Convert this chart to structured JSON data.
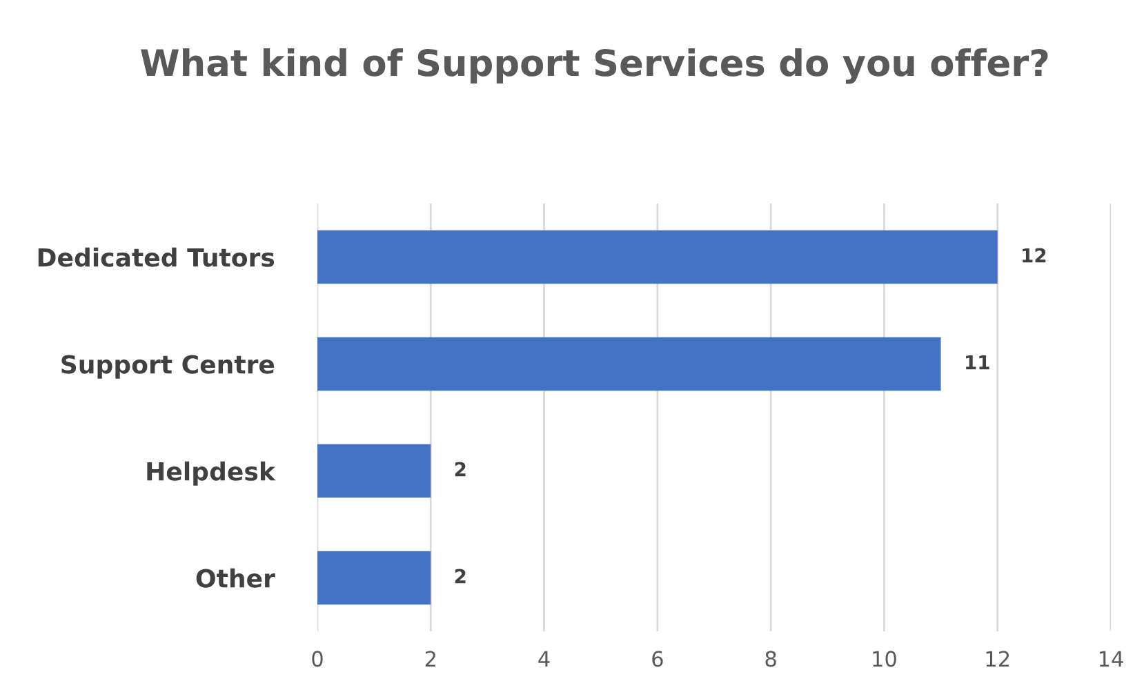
{
  "chart_data": {
    "type": "bar",
    "orientation": "horizontal",
    "title": "What kind of Support Services do you offer?",
    "categories": [
      "Dedicated Tutors",
      "Support Centre",
      "Helpdesk",
      "Other"
    ],
    "values": [
      12,
      11,
      2,
      2
    ],
    "color": "#4472c4",
    "xlim": [
      0,
      14
    ],
    "xticks": [
      0,
      2,
      4,
      6,
      8,
      10,
      12,
      14
    ],
    "grid": "x",
    "data_labels": true
  }
}
